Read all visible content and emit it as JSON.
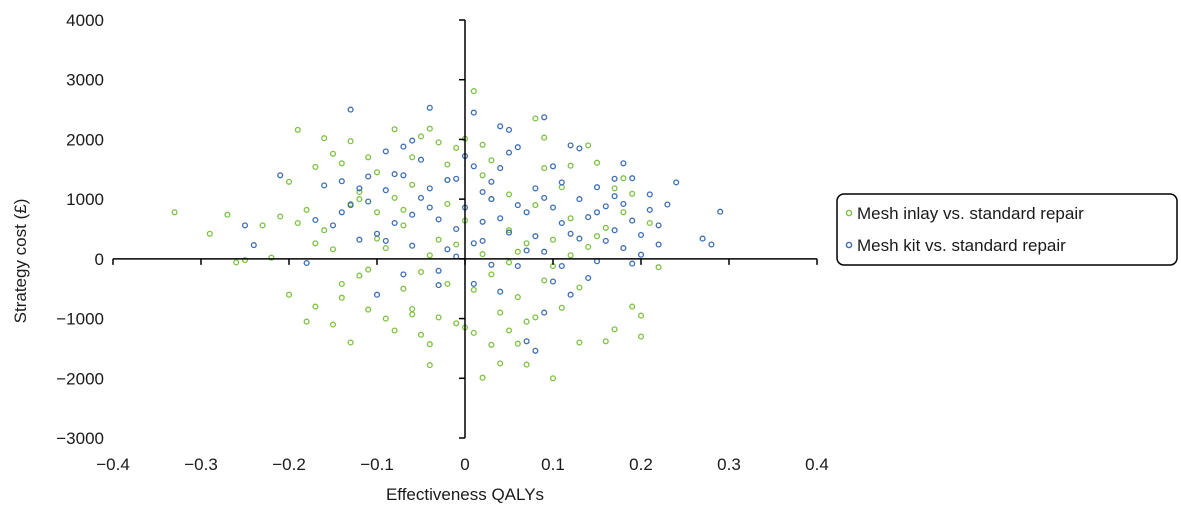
{
  "chart_data": {
    "type": "scatter",
    "xlabel": "Effectiveness QALYs",
    "ylabel": "Strategy cost (£)",
    "xlim": [
      -0.4,
      0.4
    ],
    "ylim": [
      -3000,
      4000
    ],
    "x_ticks": [
      -0.4,
      -0.3,
      -0.2,
      -0.1,
      0,
      0.1,
      0.2,
      0.3,
      0.4
    ],
    "x_tick_labels": [
      "−0.4",
      "−0.3",
      "−0.2",
      "−0.1",
      "0",
      "0.1",
      "0.2",
      "0.3",
      "0.4"
    ],
    "y_ticks": [
      -3000,
      -2000,
      -1000,
      0,
      1000,
      2000,
      3000,
      4000
    ],
    "y_tick_labels": [
      "−3000",
      "−2000",
      "−1000",
      "0",
      "1000",
      "2000",
      "3000",
      "4000"
    ],
    "grid": false,
    "axes_cross_at_origin": true,
    "legend_position": "right",
    "series": [
      {
        "name": "Mesh inlay vs. standard repair",
        "color": "#7dc143",
        "marker": "open-circle",
        "points": [
          [
            -0.33,
            780
          ],
          [
            -0.27,
            740
          ],
          [
            -0.29,
            420
          ],
          [
            -0.25,
            -20
          ],
          [
            -0.26,
            -60
          ],
          [
            -0.23,
            560
          ],
          [
            -0.22,
            20
          ],
          [
            -0.19,
            2160
          ],
          [
            -0.2,
            1290
          ],
          [
            -0.21,
            710
          ],
          [
            -0.2,
            -600
          ],
          [
            -0.18,
            -1050
          ],
          [
            -0.17,
            -800
          ],
          [
            -0.16,
            2020
          ],
          [
            -0.17,
            1540
          ],
          [
            -0.15,
            -1100
          ],
          [
            -0.15,
            1760
          ],
          [
            -0.14,
            -650
          ],
          [
            -0.13,
            -1400
          ],
          [
            -0.13,
            1970
          ],
          [
            -0.12,
            1120
          ],
          [
            -0.11,
            1700
          ],
          [
            -0.1,
            340
          ],
          [
            -0.11,
            -850
          ],
          [
            -0.09,
            -1000
          ],
          [
            -0.08,
            2170
          ],
          [
            -0.08,
            -1200
          ],
          [
            -0.07,
            820
          ],
          [
            -0.06,
            -930
          ],
          [
            -0.05,
            2050
          ],
          [
            -0.05,
            -1270
          ],
          [
            -0.04,
            2180
          ],
          [
            -0.04,
            -1430
          ],
          [
            -0.04,
            -1780
          ],
          [
            -0.03,
            1950
          ],
          [
            -0.02,
            1320
          ],
          [
            -0.01,
            -1080
          ],
          [
            -0.01,
            1860
          ],
          [
            0.0,
            2010
          ],
          [
            0.01,
            2810
          ],
          [
            0.01,
            -1240
          ],
          [
            0.02,
            -1990
          ],
          [
            0.02,
            1910
          ],
          [
            0.03,
            -1440
          ],
          [
            0.04,
            -1750
          ],
          [
            0.05,
            -1200
          ],
          [
            0.06,
            -1420
          ],
          [
            0.07,
            -1770
          ],
          [
            0.08,
            2350
          ],
          [
            0.08,
            -980
          ],
          [
            0.09,
            2030
          ],
          [
            0.1,
            -2000
          ],
          [
            0.12,
            1560
          ],
          [
            0.13,
            -1400
          ],
          [
            0.15,
            1610
          ],
          [
            0.16,
            -1380
          ],
          [
            0.17,
            -1180
          ],
          [
            0.17,
            1180
          ],
          [
            0.18,
            1350
          ],
          [
            0.19,
            -800
          ],
          [
            0.2,
            -950
          ],
          [
            0.2,
            -1300
          ],
          [
            0.22,
            -140
          ],
          [
            0.21,
            600
          ],
          [
            0.19,
            1090
          ],
          [
            0.14,
            1900
          ],
          [
            -0.14,
            1600
          ],
          [
            -0.12,
            1000
          ],
          [
            -0.1,
            780
          ],
          [
            -0.07,
            560
          ],
          [
            -0.06,
            1240
          ],
          [
            -0.03,
            320
          ],
          [
            -0.02,
            920
          ],
          [
            0.0,
            640
          ],
          [
            0.02,
            1400
          ],
          [
            0.03,
            1000
          ],
          [
            0.05,
            480
          ],
          [
            0.06,
            120
          ],
          [
            0.08,
            900
          ],
          [
            0.1,
            320
          ],
          [
            0.12,
            680
          ],
          [
            0.14,
            200
          ],
          [
            0.16,
            520
          ],
          [
            -0.09,
            180
          ],
          [
            -0.05,
            -220
          ],
          [
            -0.02,
            -420
          ],
          [
            0.01,
            -520
          ],
          [
            0.03,
            -260
          ],
          [
            0.06,
            -640
          ],
          [
            0.09,
            -360
          ],
          [
            0.11,
            -820
          ],
          [
            0.13,
            -480
          ],
          [
            -0.12,
            -280
          ],
          [
            -0.15,
            160
          ],
          [
            -0.16,
            480
          ],
          [
            -0.18,
            820
          ],
          [
            -0.14,
            -420
          ],
          [
            -0.11,
            -180
          ],
          [
            -0.07,
            -500
          ],
          [
            -0.04,
            60
          ],
          [
            -0.01,
            240
          ],
          [
            0.02,
            80
          ],
          [
            0.05,
            -60
          ],
          [
            0.07,
            260
          ],
          [
            0.1,
            -120
          ],
          [
            0.12,
            60
          ],
          [
            0.15,
            380
          ],
          [
            0.18,
            780
          ],
          [
            -0.08,
            1020
          ],
          [
            -0.06,
            -840
          ],
          [
            -0.03,
            -980
          ],
          [
            0.0,
            -1150
          ],
          [
            0.04,
            -900
          ],
          [
            0.07,
            -1050
          ],
          [
            -0.13,
            920
          ],
          [
            -0.1,
            1450
          ],
          [
            0.03,
            1650
          ],
          [
            0.09,
            1520
          ],
          [
            0.11,
            1200
          ],
          [
            -0.17,
            260
          ],
          [
            -0.19,
            600
          ],
          [
            -0.06,
            1700
          ],
          [
            -0.02,
            1580
          ],
          [
            0.05,
            1080
          ]
        ]
      },
      {
        "name": "Mesh kit vs. standard repair",
        "color": "#3c6db5",
        "marker": "open-circle",
        "points": [
          [
            -0.13,
            2500
          ],
          [
            -0.04,
            2530
          ],
          [
            -0.21,
            1400
          ],
          [
            -0.25,
            560
          ],
          [
            -0.24,
            230
          ],
          [
            0.01,
            2450
          ],
          [
            0.04,
            2220
          ],
          [
            0.09,
            2370
          ],
          [
            0.29,
            790
          ],
          [
            0.27,
            340
          ],
          [
            0.28,
            240
          ],
          [
            0.24,
            1280
          ],
          [
            0.23,
            910
          ],
          [
            0.22,
            560
          ],
          [
            0.21,
            820
          ],
          [
            0.2,
            70
          ],
          [
            0.19,
            1350
          ],
          [
            0.18,
            1600
          ],
          [
            0.17,
            1050
          ],
          [
            0.16,
            300
          ],
          [
            0.15,
            1200
          ],
          [
            0.13,
            1850
          ],
          [
            0.12,
            1900
          ],
          [
            0.11,
            600
          ],
          [
            0.1,
            1550
          ],
          [
            0.09,
            120
          ],
          [
            0.09,
            -900
          ],
          [
            0.08,
            -1540
          ],
          [
            0.07,
            -1380
          ],
          [
            0.06,
            1870
          ],
          [
            0.05,
            2160
          ],
          [
            0.04,
            -550
          ],
          [
            0.03,
            1000
          ],
          [
            0.02,
            300
          ],
          [
            0.01,
            -420
          ],
          [
            0.0,
            1720
          ],
          [
            -0.01,
            500
          ],
          [
            -0.02,
            1320
          ],
          [
            -0.03,
            -200
          ],
          [
            -0.04,
            860
          ],
          [
            -0.05,
            1660
          ],
          [
            -0.06,
            220
          ],
          [
            -0.07,
            1400
          ],
          [
            -0.08,
            600
          ],
          [
            -0.09,
            1150
          ],
          [
            -0.1,
            420
          ],
          [
            -0.11,
            1380
          ],
          [
            -0.12,
            320
          ],
          [
            -0.13,
            900
          ],
          [
            -0.14,
            780
          ],
          [
            -0.15,
            560
          ],
          [
            -0.16,
            1230
          ],
          [
            -0.17,
            650
          ],
          [
            -0.18,
            -70
          ],
          [
            -0.1,
            -600
          ],
          [
            -0.07,
            -260
          ],
          [
            -0.03,
            -440
          ],
          [
            0.01,
            1550
          ],
          [
            0.03,
            1290
          ],
          [
            0.05,
            440
          ],
          [
            0.06,
            900
          ],
          [
            0.07,
            140
          ],
          [
            0.08,
            1180
          ],
          [
            0.1,
            860
          ],
          [
            0.11,
            -120
          ],
          [
            0.12,
            420
          ],
          [
            0.13,
            1000
          ],
          [
            0.14,
            700
          ],
          [
            0.15,
            -40
          ],
          [
            0.16,
            880
          ],
          [
            0.17,
            480
          ],
          [
            0.18,
            180
          ],
          [
            0.19,
            640
          ],
          [
            0.2,
            400
          ],
          [
            0.21,
            1080
          ],
          [
            0.14,
            -320
          ],
          [
            0.12,
            -600
          ],
          [
            0.1,
            -380
          ],
          [
            0.08,
            380
          ],
          [
            0.06,
            -120
          ],
          [
            0.04,
            680
          ],
          [
            0.02,
            1120
          ],
          [
            0.0,
            860
          ],
          [
            -0.02,
            160
          ],
          [
            -0.04,
            1180
          ],
          [
            -0.06,
            740
          ],
          [
            -0.08,
            1420
          ],
          [
            -0.09,
            300
          ],
          [
            -0.11,
            960
          ],
          [
            -0.12,
            1180
          ],
          [
            -0.07,
            1880
          ],
          [
            -0.05,
            1020
          ],
          [
            -0.01,
            1340
          ],
          [
            0.02,
            620
          ],
          [
            0.04,
            1520
          ],
          [
            0.07,
            780
          ],
          [
            0.09,
            1020
          ],
          [
            0.11,
            1280
          ],
          [
            0.13,
            340
          ],
          [
            0.15,
            780
          ],
          [
            0.17,
            1340
          ],
          [
            0.19,
            -80
          ],
          [
            0.22,
            240
          ],
          [
            0.18,
            920
          ],
          [
            -0.03,
            660
          ],
          [
            -0.01,
            40
          ],
          [
            0.01,
            260
          ],
          [
            0.03,
            -100
          ],
          [
            0.05,
            1780
          ],
          [
            -0.09,
            1800
          ],
          [
            -0.14,
            1300
          ],
          [
            -0.06,
            1980
          ]
        ]
      }
    ]
  }
}
